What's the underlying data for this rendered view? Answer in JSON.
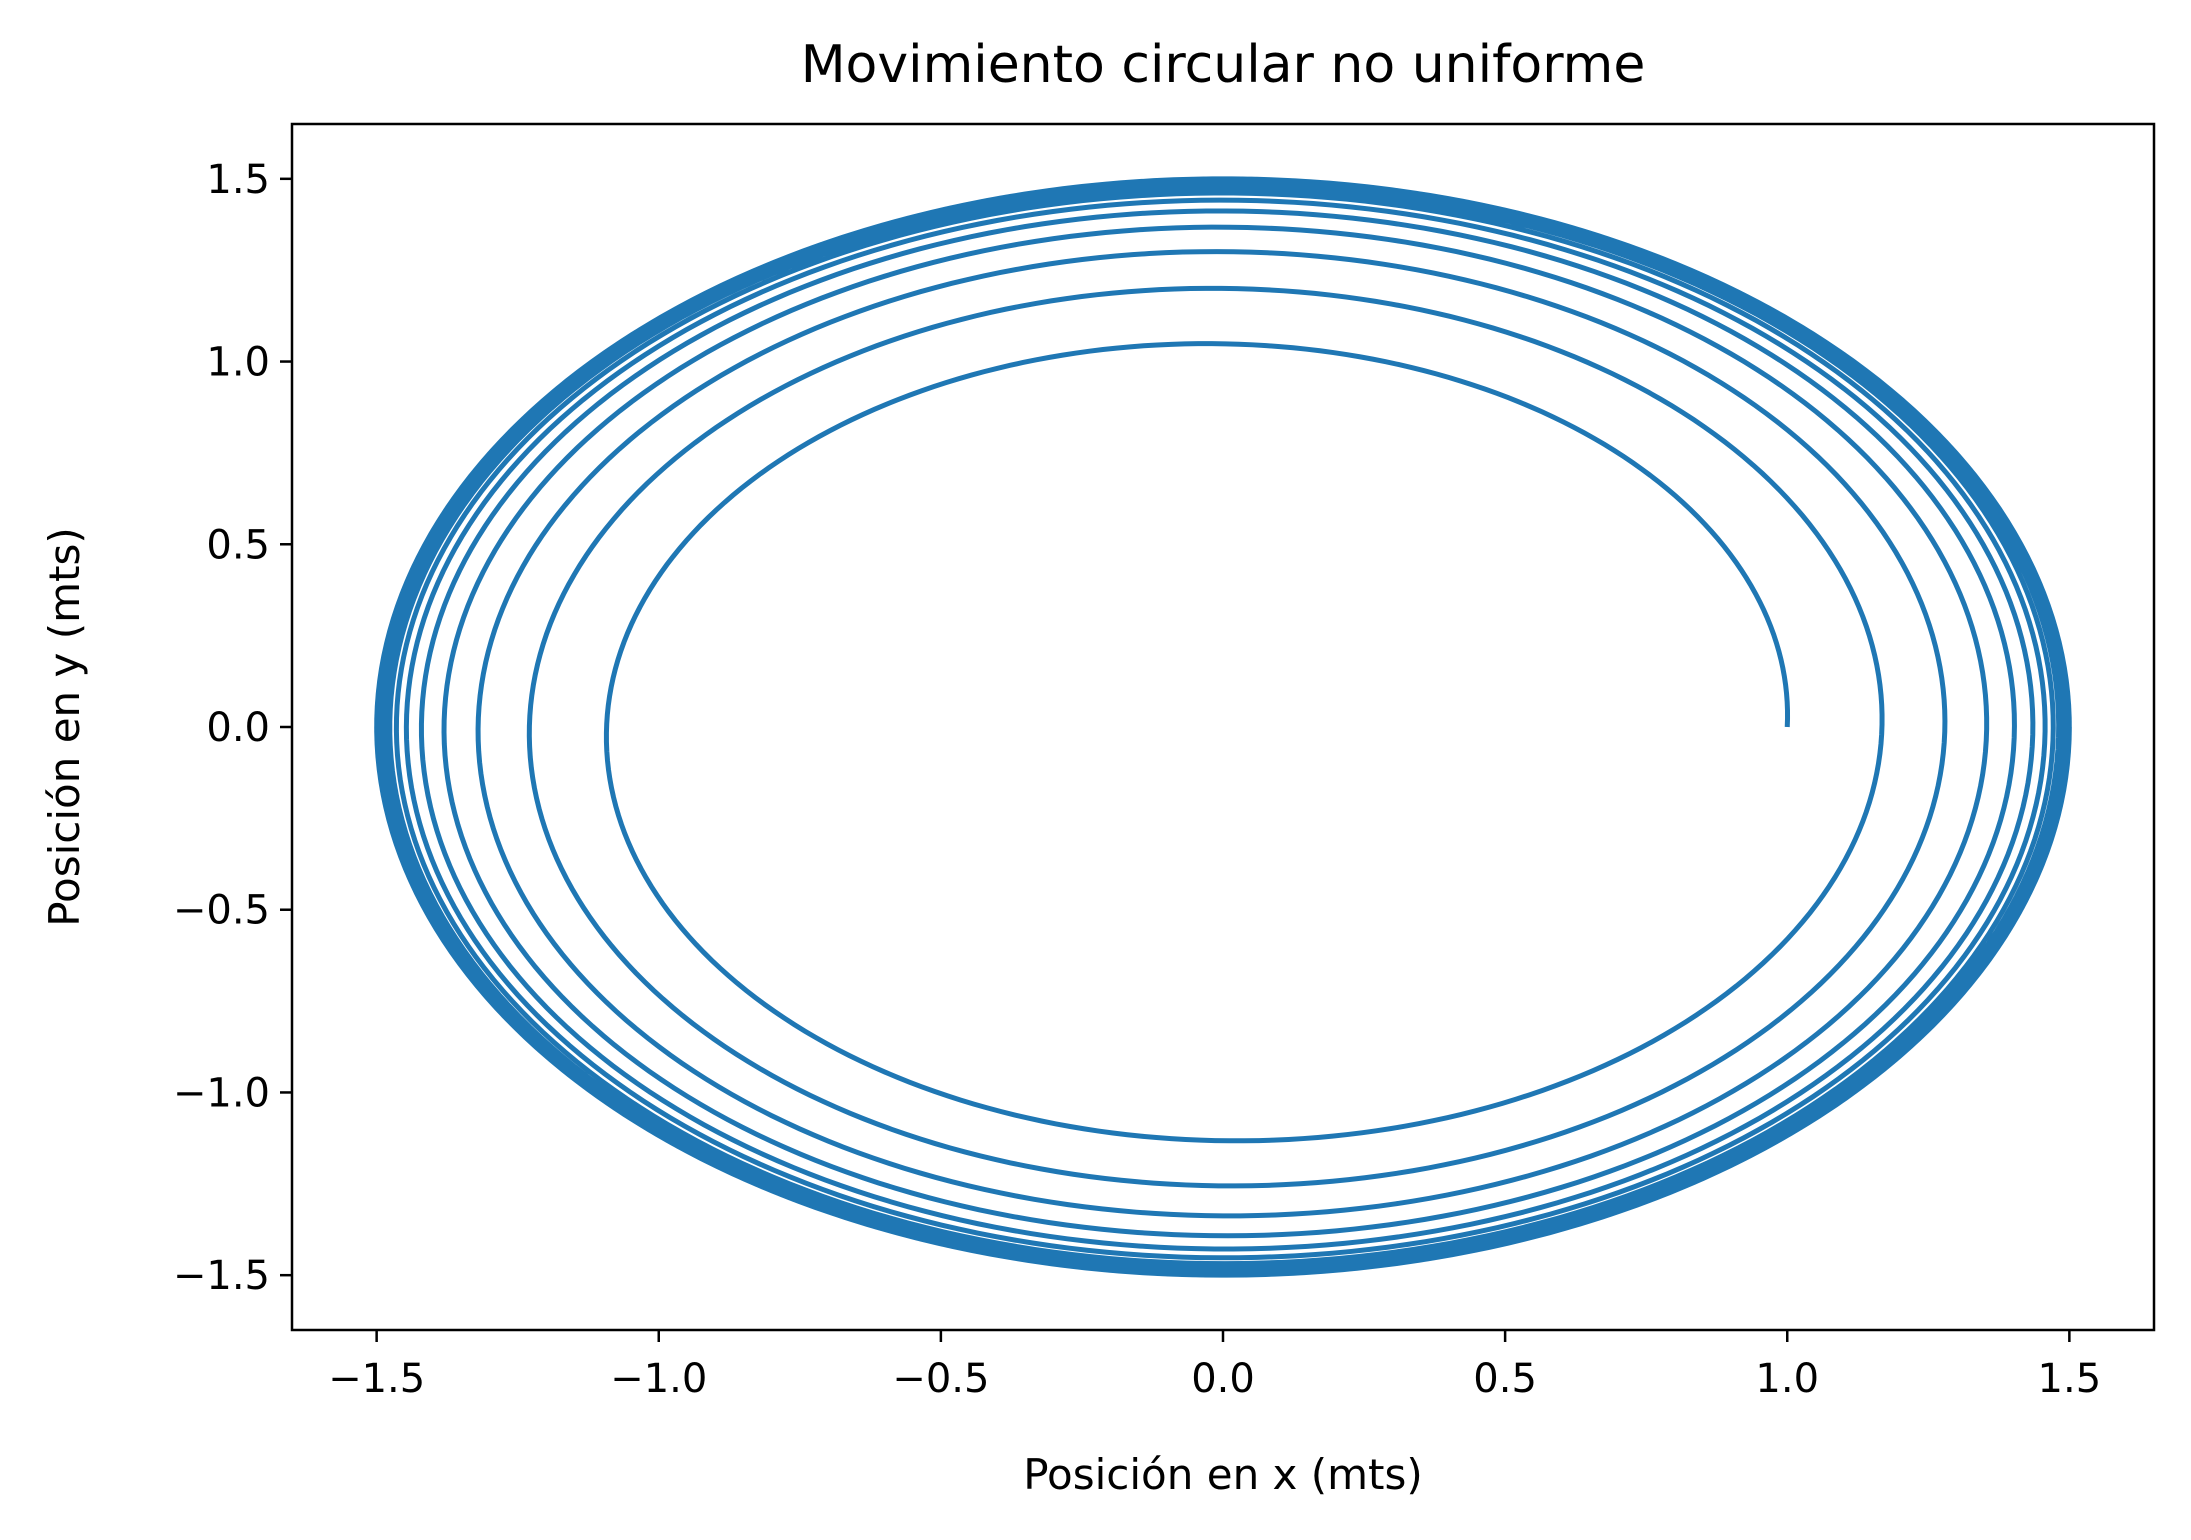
{
  "chart_data": {
    "type": "line",
    "title": "Movimiento circular no uniforme",
    "xlabel": "Posición en x (mts)",
    "ylabel": "Posición en y (mts)",
    "xlim": [
      -1.65,
      1.65
    ],
    "ylim": [
      -1.65,
      1.65
    ],
    "xticks": [
      -1.5,
      -1.0,
      -0.5,
      0.0,
      0.5,
      1.0,
      1.5
    ],
    "yticks": [
      -1.5,
      -1.0,
      -0.5,
      0.0,
      0.5,
      1.0,
      1.5
    ],
    "xtick_labels": [
      "−1.5",
      "−1.0",
      "−0.5",
      "0.0",
      "0.5",
      "1.0",
      "1.5"
    ],
    "ytick_labels": [
      "−1.5",
      "−1.0",
      "−0.5",
      "0.0",
      "0.5",
      "1.0",
      "1.5"
    ],
    "grid": false,
    "series": [
      {
        "color": "#1f77b4",
        "description_points": {
          "x": [
            1.0,
            1.02,
            0.96,
            0.0,
            -1.16,
            -0.02,
            1.23,
            0.02,
            -1.27,
            0.0,
            1.31,
            0.0,
            -1.33,
            0.0,
            1.36,
            0.0,
            -1.4,
            0.0,
            1.42,
            0.0,
            -1.45,
            0.0,
            1.47,
            0.0,
            -1.48,
            0.0,
            1.49,
            0.0,
            -1.5,
            0.0,
            1.5
          ],
          "y": [
            0.0,
            0.05,
            0.25,
            1.12,
            -0.03,
            -1.2,
            0.01,
            1.25,
            0.0,
            -1.3,
            0.0,
            1.32,
            0.0,
            -1.37,
            0.0,
            1.4,
            0.0,
            -1.43,
            0.0,
            1.44,
            0.0,
            -1.46,
            0.0,
            1.47,
            0.0,
            -1.48,
            0.0,
            1.49,
            0.0,
            -1.5,
            0.0
          ]
        }
      }
    ]
  }
}
